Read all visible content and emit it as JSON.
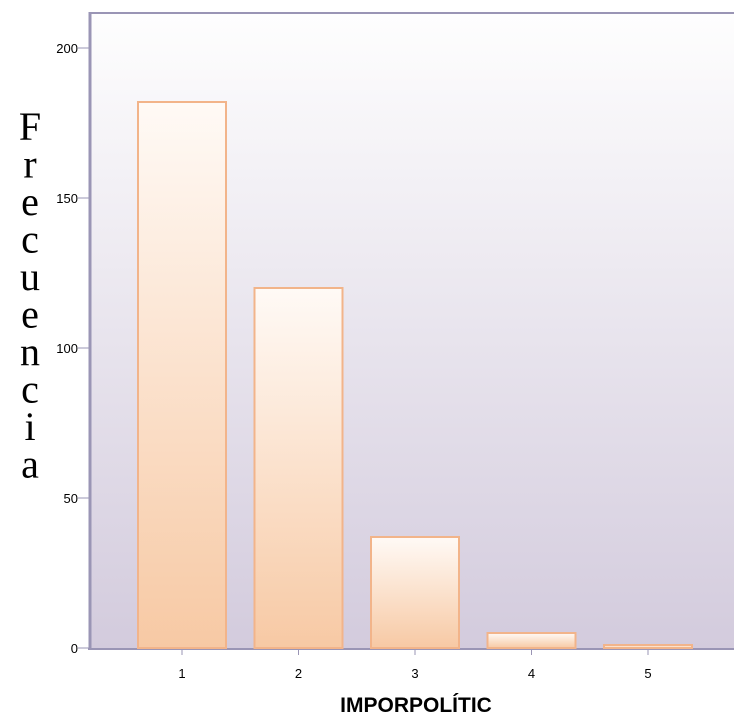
{
  "chart_data": {
    "type": "bar",
    "categories": [
      "1",
      "2",
      "3",
      "4",
      "5"
    ],
    "values": [
      182,
      120,
      37,
      5,
      1
    ],
    "xlabel": "IMPORPOLÍTIC",
    "ylabel": "Frecuencia",
    "yticks": [
      "0",
      "50",
      "100",
      "150",
      "200"
    ],
    "ylim": [
      0,
      210
    ],
    "grid": false,
    "colors": {
      "bar_fill_top": "#fffaf6",
      "bar_fill_bottom": "#f7c9a4",
      "bar_edge": "#f2b48a",
      "bg_top": "#fefefe",
      "bg_bottom": "#d3cbdd",
      "axis": "#9a95b5"
    }
  }
}
